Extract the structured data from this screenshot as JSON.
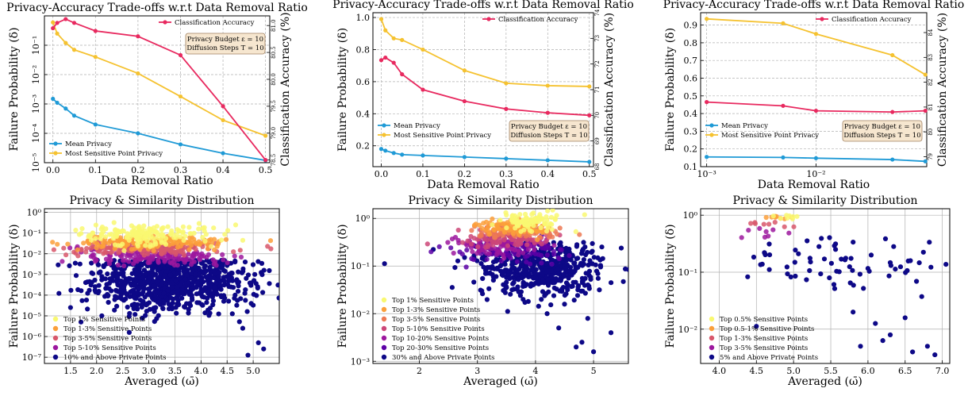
{
  "colors": {
    "mean_privacy": "#1f9ad6",
    "most_sensitive": "#f5c230",
    "classification_accuracy": "#e8295f",
    "legend_box_fill": "#f6e6cf",
    "grid": "#b0b0b0"
  },
  "chart_data": [
    {
      "type": "line",
      "title": "Privacy-Accuracy Trade-offs w.r.t Data Removal Ratio",
      "xlabel": "Data Removal Ratio",
      "ylabel": "Failure Probability (δ)",
      "y2label": "Classification Accuracy (%)",
      "xscale": "linear",
      "yscale": "log",
      "xlim": [
        -0.02,
        0.51
      ],
      "ylim": [
        1e-05,
        1
      ],
      "y2lim": [
        78.45,
        81.18
      ],
      "x_ticks": [
        0.0,
        0.1,
        0.2,
        0.3,
        0.4,
        0.5
      ],
      "x_tick_labels": [
        "0.0",
        "0.1",
        "0.2",
        "0.3",
        "0.4",
        "0.5"
      ],
      "y_ticks": [
        1e-05,
        0.0001,
        0.001,
        0.01,
        0.1
      ],
      "y_tick_labels": [
        "10⁻⁵",
        "10⁻⁴",
        "10⁻³",
        "10⁻²",
        "10⁻¹"
      ],
      "y2_ticks": [
        78.5,
        79.0,
        79.5,
        80.0,
        80.5,
        81.0
      ],
      "y2_tick_labels": [
        "78.5",
        "79.0",
        "79.5",
        "80.0",
        "80.5",
        "81.0"
      ],
      "x": [
        0.0,
        0.01,
        0.03,
        0.05,
        0.1,
        0.2,
        0.3,
        0.4,
        0.5
      ],
      "series": [
        {
          "name": "Mean Privacy",
          "axis": "left",
          "values": [
            0.0015,
            0.0011,
            0.0007,
            0.0004,
            0.0002,
            0.0001,
            4.2e-05,
            2.1e-05,
            1.2e-05
          ]
        },
        {
          "name": "Most Sensitive Point Privacy",
          "axis": "left",
          "values": [
            0.6,
            0.25,
            0.12,
            0.07,
            0.04,
            0.011,
            0.0018,
            0.00028,
            8.3e-05
          ]
        },
        {
          "name": "Classification Accuracy",
          "axis": "right",
          "values": [
            80.95,
            81.05,
            81.12,
            81.05,
            80.9,
            80.8,
            80.45,
            79.5,
            78.5
          ]
        }
      ],
      "legend": [
        "Classification Accuracy"
      ],
      "legend_left": [
        "Mean Privacy",
        "Most Sensitive Point Privacy"
      ],
      "info_box": [
        "Privacy Budget ε = 10",
        "Diffusion Steps T = 10"
      ],
      "grid": true
    },
    {
      "type": "line",
      "title": "Privacy-Accuracy Trade-offs w.r.t Data Removal Ratio",
      "xlabel": "Data Removal Ratio",
      "ylabel": "Failure Probability (δ)",
      "y2label": "Classification Accuracy (%)",
      "xscale": "linear",
      "yscale": "linear",
      "xlim": [
        -0.02,
        0.51
      ],
      "ylim": [
        0.07,
        1.03
      ],
      "y2lim": [
        68.0,
        74.0
      ],
      "x_ticks": [
        0.0,
        0.1,
        0.2,
        0.3,
        0.4,
        0.5
      ],
      "x_tick_labels": [
        "0.0",
        "0.1",
        "0.2",
        "0.3",
        "0.4",
        "0.5"
      ],
      "y_ticks": [
        0.2,
        0.4,
        0.6,
        0.8,
        1.0
      ],
      "y_tick_labels": [
        "0.2",
        "0.4",
        "0.6",
        "0.8",
        "1.0"
      ],
      "y2_ticks": [
        68,
        69,
        70,
        71,
        72,
        73,
        74
      ],
      "y2_tick_labels": [
        "68",
        "69",
        "70",
        "71",
        "72",
        "73",
        "74"
      ],
      "x": [
        0.0,
        0.01,
        0.03,
        0.05,
        0.1,
        0.2,
        0.3,
        0.4,
        0.5
      ],
      "series": [
        {
          "name": "Mean Privacy",
          "axis": "left",
          "values": [
            0.18,
            0.17,
            0.155,
            0.145,
            0.14,
            0.13,
            0.12,
            0.11,
            0.1
          ]
        },
        {
          "name": "Most Sensitive Point Privacy",
          "axis": "left",
          "values": [
            0.99,
            0.92,
            0.87,
            0.86,
            0.8,
            0.67,
            0.59,
            0.575,
            0.57
          ]
        },
        {
          "name": "Classification Accuracy",
          "axis": "right",
          "values": [
            72.15,
            72.25,
            72.05,
            71.6,
            71.0,
            70.55,
            70.25,
            70.1,
            70.0
          ]
        }
      ],
      "legend": [
        "Classification Accuracy"
      ],
      "legend_left": [
        "Mean Privacy",
        "Most Sensitive Point Privacy"
      ],
      "info_box": [
        "Privacy Budget ε = 10",
        "Diffusion Steps T = 10"
      ],
      "grid": true
    },
    {
      "type": "line",
      "title": "Privacy-Accuracy Trade-offs w.r.t Data Removal Ratio",
      "xlabel": "Data Removal Ratio",
      "ylabel": "Failure Probability (δ)",
      "y2label": "Classification Accuracy (%)",
      "xscale": "log",
      "yscale": "linear",
      "xlim": [
        0.00088,
        0.103
      ],
      "ylim": [
        0.1,
        0.97
      ],
      "y2lim": [
        78.6,
        84.8
      ],
      "x_ticks": [
        0.001,
        0.01
      ],
      "x_tick_labels": [
        "10⁻³",
        "10⁻²"
      ],
      "y_ticks": [
        0.1,
        0.2,
        0.3,
        0.4,
        0.5,
        0.6,
        0.7,
        0.8,
        0.9
      ],
      "y_tick_labels": [
        "0.1",
        "0.2",
        "0.3",
        "0.4",
        "0.5",
        "0.6",
        "0.7",
        "0.8",
        "0.9"
      ],
      "y2_ticks": [
        79,
        80,
        81,
        82,
        83,
        84
      ],
      "y2_tick_labels": [
        "79",
        "80",
        "81",
        "82",
        "83",
        "84"
      ],
      "x": [
        0.001,
        0.005,
        0.01,
        0.05,
        0.1
      ],
      "series": [
        {
          "name": "Mean Privacy",
          "axis": "left",
          "values": [
            0.155,
            0.152,
            0.148,
            0.14,
            0.13
          ]
        },
        {
          "name": "Most Sensitive Point Privacy",
          "axis": "left",
          "values": [
            0.935,
            0.91,
            0.85,
            0.73,
            0.62
          ]
        },
        {
          "name": "Classification Accuracy",
          "axis": "right",
          "values": [
            81.2,
            81.05,
            80.85,
            80.8,
            80.85
          ]
        }
      ],
      "legend": [
        "Classification Accuracy"
      ],
      "legend_left": [
        "Mean Privacy",
        "Most Sensitive Point Privacy"
      ],
      "info_box": [
        "Privacy Budget ε = 10",
        "Diffusion Steps T = 10"
      ],
      "grid": true
    },
    {
      "type": "scatter",
      "title": "Privacy & Similarity Distribution",
      "xlabel": "Averaged (ω̄)",
      "ylabel": "Failure Probability (δ)",
      "xscale": "linear",
      "yscale": "log",
      "xlim": [
        1.0,
        5.5
      ],
      "ylim": [
        5e-08,
        1.5
      ],
      "x_ticks": [
        1.5,
        2.0,
        2.5,
        3.0,
        3.5,
        4.0,
        4.5,
        5.0
      ],
      "x_tick_labels": [
        "1.5",
        "2.0",
        "2.5",
        "3.0",
        "3.5",
        "4.0",
        "4.5",
        "5.0"
      ],
      "y_ticks": [
        1e-07,
        1e-06,
        1e-05,
        0.0001,
        0.001,
        0.01,
        0.1,
        1
      ],
      "y_tick_labels": [
        "10⁻⁷",
        "10⁻⁶",
        "10⁻⁵",
        "10⁻⁴",
        "10⁻³",
        "10⁻²",
        "10⁻¹",
        "10⁰"
      ],
      "series": [
        {
          "name": "10% and Above Private Points",
          "color": "#0d0887",
          "cx": 3.4,
          "sx": 0.75,
          "ly": -3.3,
          "sy": 0.75,
          "ymax": -2.3,
          "points": [
            [
              1.5,
              -4.6
            ],
            [
              2.1,
              -5.0
            ],
            [
              4.8,
              -5.6
            ],
            [
              5.1,
              -6.3
            ],
            [
              4.9,
              -6.9
            ],
            [
              1.7,
              -5.3
            ],
            [
              4.6,
              -4.9
            ],
            [
              5.2,
              -6.6
            ]
          ]
        },
        {
          "name": "Top 5-10% Sensitive Points",
          "color": "#9c179e",
          "cx": 3.1,
          "sx": 0.7,
          "ly": -2.15,
          "sy": 0.2
        },
        {
          "name": "Top 3-5% Sensitive Points",
          "color": "#d8576b",
          "cx": 3.0,
          "sx": 0.7,
          "ly": -1.75,
          "sy": 0.15
        },
        {
          "name": "Top 1-3% Sensitive Points",
          "color": "#fb9f3a",
          "cx": 2.95,
          "sx": 0.7,
          "ly": -1.45,
          "sy": 0.15
        },
        {
          "name": "Top 1% Sensitive Points",
          "color": "#f9f871",
          "cx": 2.9,
          "sx": 0.7,
          "ly": -1.1,
          "sy": 0.25
        }
      ],
      "legend_order": [
        "Top 1% Sensitive Points",
        "Top 1-3% Sensitive Points",
        "Top 3-5% Sensitive Points",
        "Top 5-10% Sensitive Points",
        "10% and Above Private Points"
      ],
      "legend_colors": [
        "#f9f871",
        "#fb9f3a",
        "#d8576b",
        "#9c179e",
        "#0d0887"
      ],
      "grid": true
    },
    {
      "type": "scatter",
      "title": "Privacy & Similarity Distribution",
      "xlabel": "Averaged (ω̄)",
      "ylabel": "Failure Probability (δ)",
      "xscale": "linear",
      "yscale": "log",
      "xlim": [
        1.2,
        5.6
      ],
      "ylim": [
        0.0009,
        1.6
      ],
      "x_ticks": [
        2,
        3,
        4,
        5
      ],
      "x_tick_labels": [
        "2",
        "3",
        "4",
        "5"
      ],
      "y_ticks": [
        0.001,
        0.01,
        0.1,
        1
      ],
      "y_tick_labels": [
        "10⁻³",
        "10⁻²",
        "10⁻¹",
        "10⁰"
      ],
      "series": [
        {
          "name": "30% and Above Private Points",
          "color": "#0d0887",
          "cx": 4.1,
          "sx": 0.55,
          "ly": -1.05,
          "sy": 0.3,
          "ymax": -0.5,
          "points": [
            [
              1.4,
              -0.95
            ],
            [
              4.2,
              -2.0
            ],
            [
              4.5,
              -1.8
            ],
            [
              4.8,
              -2.6
            ],
            [
              5.0,
              -2.8
            ],
            [
              4.4,
              -2.3
            ],
            [
              5.3,
              -2.4
            ],
            [
              4.1,
              -1.7
            ],
            [
              4.9,
              -2.1
            ],
            [
              5.1,
              -1.5
            ],
            [
              4.7,
              -2.7
            ]
          ]
        },
        {
          "name": "Top 20-30% Sensitive Points",
          "color": "#5c01a6",
          "cx": 3.6,
          "sx": 0.5,
          "ly": -0.7,
          "sy": 0.12
        },
        {
          "name": "Top 10-20% Sensitive Points",
          "color": "#9c179e",
          "cx": 3.4,
          "sx": 0.45,
          "ly": -0.55,
          "sy": 0.1
        },
        {
          "name": "Top 5-10% Sensitive Points",
          "color": "#cc4778",
          "cx": 3.5,
          "sx": 0.4,
          "ly": -0.4,
          "sy": 0.08
        },
        {
          "name": "Top 3-5% Sensitive Points",
          "color": "#ed7953",
          "cx": 3.6,
          "sx": 0.35,
          "ly": -0.3,
          "sy": 0.07
        },
        {
          "name": "Top 1-3% Sensitive Points",
          "color": "#fb9f3a",
          "cx": 3.7,
          "sx": 0.3,
          "ly": -0.2,
          "sy": 0.08
        },
        {
          "name": "Top 1% Sensitive Points",
          "color": "#f9f871",
          "cx": 3.9,
          "sx": 0.25,
          "ly": -0.05,
          "sy": 0.1
        }
      ],
      "legend_order": [
        "Top 1% Sensitive Points",
        "Top 1-3% Sensitive Points",
        "Top 3-5% Sensitive Points",
        "Top 5-10% Sensitive Points",
        "Top 10-20% Sensitive Points",
        "Top 20-30% Sensitive Points",
        "30% and Above Private Points"
      ],
      "legend_colors": [
        "#f9f871",
        "#fb9f3a",
        "#ed7953",
        "#cc4778",
        "#9c179e",
        "#5c01a6",
        "#0d0887"
      ],
      "grid": true
    },
    {
      "type": "scatter",
      "title": "Privacy & Similarity Distribution",
      "xlabel": "Averaged (ω̄)",
      "ylabel": "Failure Probability (δ)",
      "xscale": "linear",
      "yscale": "log",
      "xlim": [
        3.75,
        7.1
      ],
      "ylim": [
        0.0025,
        1.3
      ],
      "x_ticks": [
        4.0,
        4.5,
        5.0,
        5.5,
        6.0,
        6.5,
        7.0
      ],
      "x_tick_labels": [
        "4.0",
        "4.5",
        "5.0",
        "5.5",
        "6.0",
        "6.5",
        "7.0"
      ],
      "y_ticks": [
        0.01,
        0.1,
        1
      ],
      "y_tick_labels": [
        "10⁻²",
        "10⁻¹",
        "10⁰"
      ],
      "series": [
        {
          "name": "5% and Above Private Points",
          "color": "#0d0887",
          "cx": 5.7,
          "sx": 0.7,
          "ly": -0.85,
          "sy": 0.25,
          "ymax": -0.35,
          "points": [
            [
              6.1,
              -1.9
            ],
            [
              6.3,
              -2.1
            ],
            [
              6.5,
              -1.8
            ],
            [
              5.9,
              -2.3
            ],
            [
              6.6,
              -2.4
            ],
            [
              6.8,
              -2.3
            ],
            [
              4.5,
              -1.95
            ],
            [
              6.2,
              -2.2
            ],
            [
              6.9,
              -2.45
            ],
            [
              5.8,
              -1.7
            ]
          ]
        },
        {
          "name": "Top 3-5% Sensitive Points",
          "color": "#9c179e",
          "cx": 4.6,
          "sx": 0.2,
          "ly": -0.3,
          "sy": 0.06
        },
        {
          "name": "Top 1-3% Sensitive Points",
          "color": "#d8576b",
          "cx": 4.6,
          "sx": 0.25,
          "ly": -0.15,
          "sy": 0.05
        },
        {
          "name": "Top 0.5-1% Sensitive Points",
          "color": "#fb9f3a",
          "cx": 4.85,
          "sx": 0.1,
          "ly": -0.04,
          "sy": 0.02
        },
        {
          "name": "Top 0.5% Sensitive Points",
          "color": "#f9f871",
          "cx": 4.9,
          "sx": 0.1,
          "ly": -0.02,
          "sy": 0.02
        }
      ],
      "legend_order": [
        "Top 0.5% Sensitive Points",
        "Top 0.5-1% Sensitive Points",
        "Top 1-3% Sensitive Points",
        "Top 3-5% Sensitive Points",
        "5% and Above Private Points"
      ],
      "legend_colors": [
        "#f9f871",
        "#fb9f3a",
        "#d8576b",
        "#9c179e",
        "#0d0887"
      ],
      "grid": true
    }
  ]
}
